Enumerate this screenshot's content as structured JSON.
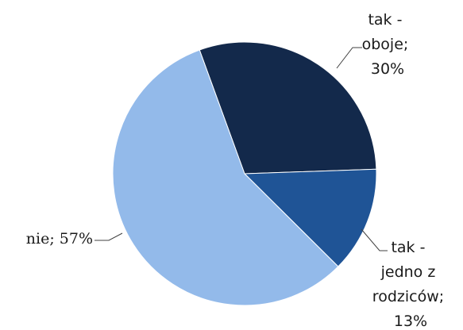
{
  "chart_data": {
    "type": "pie",
    "title": "",
    "slices": [
      {
        "label": "tak - oboje",
        "value": 30,
        "display": "30%",
        "color": "#13294b"
      },
      {
        "label": "tak - jedno z rodziców",
        "value": 13,
        "display": "13%",
        "color": "#1f5496"
      },
      {
        "label": "nie",
        "value": 57,
        "display": "57%",
        "color": "#93baea"
      }
    ],
    "data_labels": [
      {
        "lines": [
          "tak -",
          "oboje;",
          "30%"
        ]
      },
      {
        "lines": [
          "tak -",
          "jedno z",
          "rodziców;",
          "13%"
        ]
      },
      {
        "lines": [
          "nie; 57%"
        ]
      }
    ],
    "legend": "none"
  }
}
